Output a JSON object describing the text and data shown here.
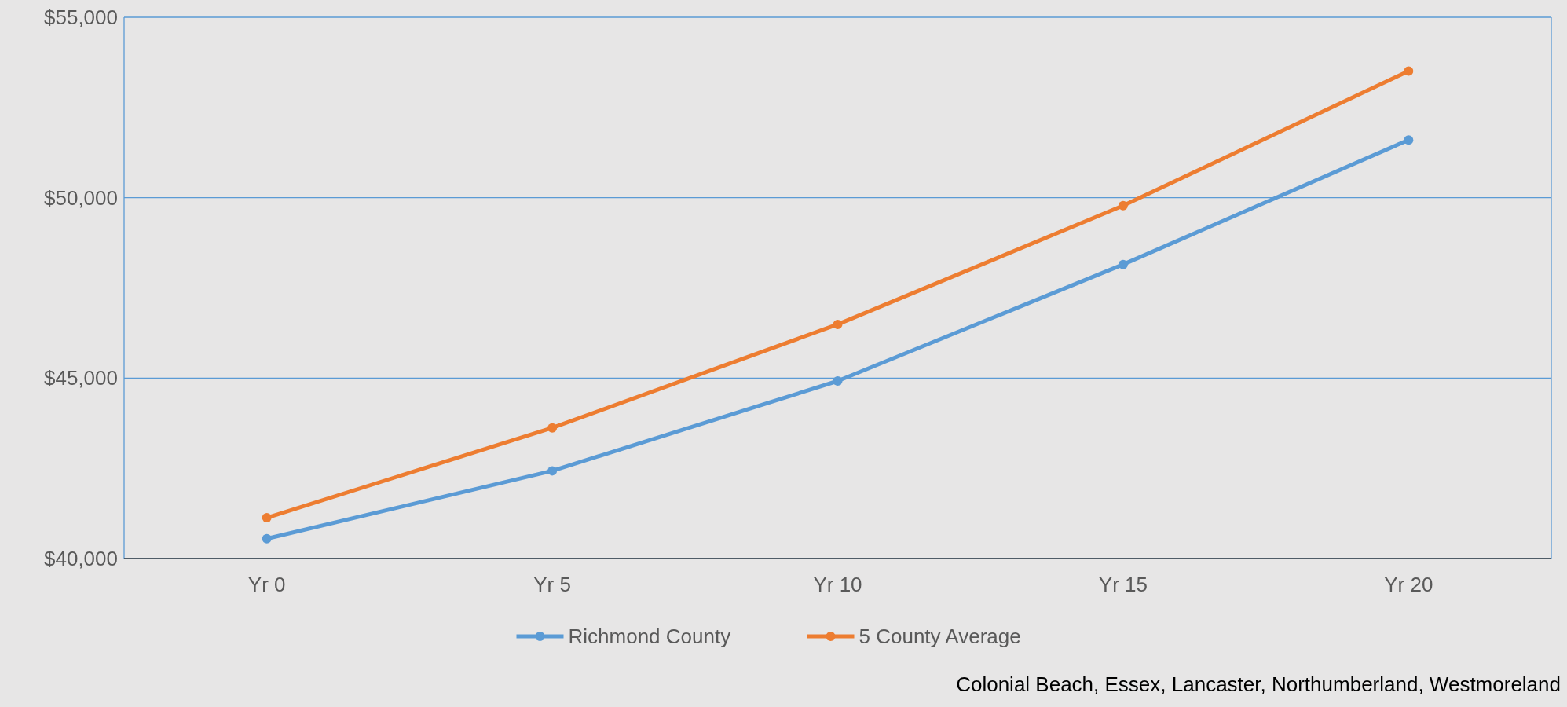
{
  "chart_data": {
    "type": "line",
    "categories": [
      "Yr 0",
      "Yr 5",
      "Yr 10",
      "Yr 15",
      "Yr 20"
    ],
    "series": [
      {
        "name": "Richmond County",
        "color": "#5b9bd5",
        "values": [
          40550,
          42430,
          44920,
          48150,
          51600
        ]
      },
      {
        "name": "5 County Average",
        "color": "#ed7d31",
        "values": [
          41130,
          43620,
          46490,
          49780,
          53510
        ]
      }
    ],
    "ylim": [
      40000,
      55000
    ],
    "yticks": [
      {
        "value": 40000,
        "label": "$40,000"
      },
      {
        "value": 45000,
        "label": "$45,000"
      },
      {
        "value": 50000,
        "label": "$50,000"
      },
      {
        "value": 55000,
        "label": "$55,000"
      }
    ],
    "grid": "y",
    "legend": "bottom",
    "marker": "circle",
    "line_style": "solid",
    "annotations": [
      "Colonial Beach, Essex, Lancaster, Northumberland, Westmoreland"
    ]
  }
}
